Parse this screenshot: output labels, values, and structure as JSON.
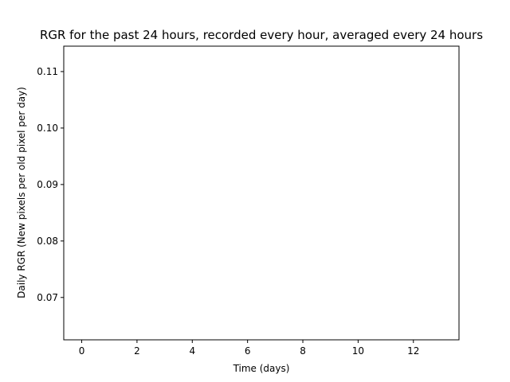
{
  "chart_data": {
    "type": "line",
    "title": "RGR for the past 24 hours, recorded every hour, averaged every 24 hours",
    "xlabel": "Time (days)",
    "ylabel": "Daily RGR (New pixels per old pixel per day)",
    "xlim": [
      -0.65,
      13.65
    ],
    "ylim": [
      0.0625,
      0.1145
    ],
    "xticks": [
      0,
      2,
      4,
      6,
      8,
      10,
      12
    ],
    "yticks": [
      0.07,
      0.08,
      0.09,
      0.1,
      0.11
    ],
    "xtick_labels": [
      "0",
      "2",
      "4",
      "6",
      "8",
      "10",
      "12"
    ],
    "ytick_labels": [
      "0.07",
      "0.08",
      "0.09",
      "0.10",
      "0.11"
    ],
    "grid": false,
    "series": [
      {
        "values": [],
        "x": []
      }
    ],
    "colors": {
      "axes": "#000000",
      "background": "#ffffff",
      "series": "#1f77b4"
    }
  }
}
